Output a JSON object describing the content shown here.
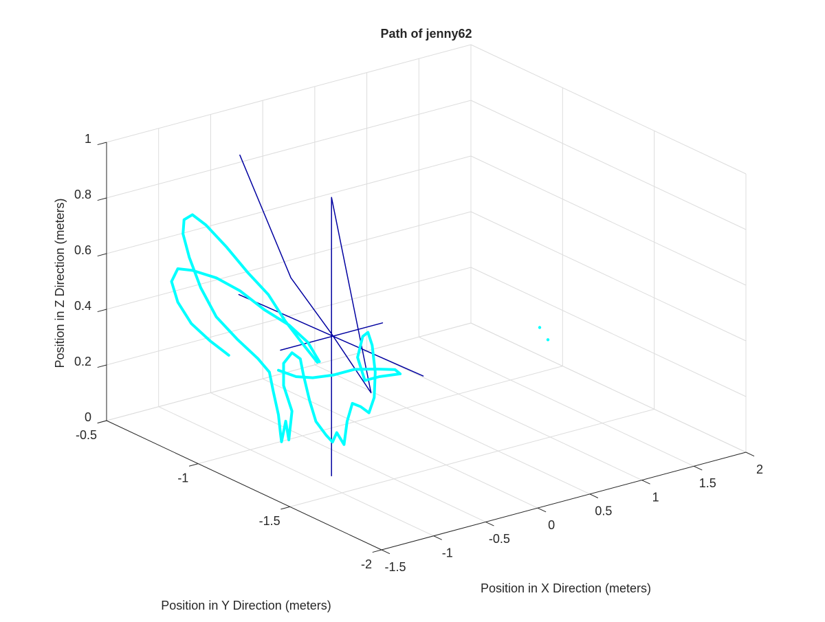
{
  "chart_data": {
    "type": "line3d",
    "title": "Path of jenny62",
    "xlabel": "Position in X Direction (meters)",
    "ylabel": "Position in Y Direction (meters)",
    "zlabel": "Position in Z Direction (meters)",
    "xlim": [
      -1.5,
      2
    ],
    "ylim": [
      -2,
      -0.5
    ],
    "zlim": [
      0,
      1
    ],
    "xticks": [
      -1.5,
      -1,
      -0.5,
      0,
      0.5,
      1,
      1.5,
      2
    ],
    "yticks": [
      -2,
      -1.5,
      -1,
      -0.5
    ],
    "zticks": [
      0,
      0.2,
      0.4,
      0.6,
      0.8,
      1
    ],
    "grid": true,
    "series": [
      {
        "color": "#0000a0",
        "linewidth": 1.5,
        "x": [
          -1.54,
          -1.05,
          -0.66,
          -0.28,
          null,
          -1.55,
          0.22,
          null,
          -1.15,
          -0.17,
          null,
          -0.66,
          -0.66,
          null,
          -0.66,
          -0.28
        ],
        "y": [
          -1.25,
          -1.25,
          -1.25,
          -1.25,
          null,
          -1.25,
          -1.25,
          null,
          -1.25,
          -1.25,
          null,
          -1.25,
          -1.25,
          null,
          -1.25,
          -1.25
        ],
        "z": [
          1.19,
          0.7,
          0.46,
          0.21,
          null,
          0.69,
          0.22,
          null,
          0.45,
          0.45,
          null,
          0.95,
          -0.05,
          null,
          0.95,
          0.21
        ]
      },
      {
        "color": "#00ffff",
        "linewidth": 4,
        "x": [
          -0.59,
          -0.77,
          -0.95,
          -1.08,
          -1.14,
          -1.08,
          -0.94,
          -0.71,
          -0.48,
          -0.25,
          -0.01,
          0.17,
          0.28,
          null,
          0.26,
          0.12,
          -0.05,
          -0.21,
          -0.41,
          -0.61,
          -0.81,
          -0.94,
          -1.02,
          -1.03,
          -0.97,
          -0.86,
          -0.71,
          -0.51,
          -0.31,
          -0.2,
          -1.22,
          -1.17,
          -1.15,
          -1.14,
          -1.1,
          -1.07,
          -1.04,
          -1.12,
          -1.12,
          -1.04,
          -0.96,
          -0.93,
          -0.87,
          -0.81,
          -0.71,
          -0.65,
          -0.61,
          -0.54,
          -0.51,
          -0.46,
          -0.38,
          -0.3,
          -0.25,
          -0.24,
          -0.27,
          -0.31,
          -0.36,
          -0.41,
          -0.34,
          -0.2,
          0.0,
          -0.05,
          -0.23,
          -0.44,
          -0.64,
          -0.84,
          -1.0,
          -1.17
        ],
        "y": [
          -0.65,
          -0.65,
          -0.65,
          -0.65,
          -0.65,
          -0.65,
          -0.65,
          -0.65,
          -0.65,
          -0.65,
          -0.65,
          -0.65,
          -0.65,
          null,
          -0.65,
          -0.65,
          -0.65,
          -0.65,
          -0.65,
          -0.65,
          -0.65,
          -0.65,
          -0.65,
          -0.65,
          -0.65,
          -0.65,
          -0.65,
          -0.65,
          -0.65,
          -0.65,
          -1.25,
          -1.25,
          -1.25,
          -1.25,
          -1.25,
          -1.25,
          -1.25,
          -1.25,
          -1.25,
          -1.25,
          -1.25,
          -1.25,
          -1.25,
          -1.25,
          -1.25,
          -1.25,
          -1.25,
          -1.25,
          -1.25,
          -1.25,
          -1.25,
          -1.25,
          -1.25,
          -1.25,
          -1.25,
          -1.25,
          -1.25,
          -1.25,
          -1.25,
          -1.25,
          -1.25,
          -1.25,
          -1.25,
          -1.25,
          -1.25,
          -1.25,
          -1.25,
          -1.25
        ],
        "z": [
          0.19,
          0.26,
          0.34,
          0.43,
          0.51,
          0.55,
          0.53,
          0.48,
          0.41,
          0.32,
          0.24,
          0.16,
          0.08,
          null,
          0.08,
          0.16,
          0.26,
          0.37,
          0.47,
          0.58,
          0.68,
          0.73,
          0.72,
          0.67,
          0.58,
          0.46,
          0.34,
          0.24,
          0.15,
          0.09,
          0.31,
          0.22,
          0.15,
          0.12,
          0.19,
          0.12,
          0.22,
          0.32,
          0.4,
          0.43,
          0.4,
          0.34,
          0.24,
          0.16,
          0.1,
          0.07,
          0.1,
          0.05,
          0.13,
          0.19,
          0.17,
          0.14,
          0.19,
          0.28,
          0.38,
          0.43,
          0.42,
          0.35,
          0.26,
          0.26,
          0.25,
          0.27,
          0.29,
          0.31,
          0.31,
          0.32,
          0.34,
          0.38
        ]
      },
      {
        "color": "#00ffff",
        "mode": "markers",
        "x": [
          2,
          2
        ],
        "y": [
          -0.875,
          -0.92
        ],
        "z": [
          0.1,
          0.07
        ]
      }
    ]
  }
}
